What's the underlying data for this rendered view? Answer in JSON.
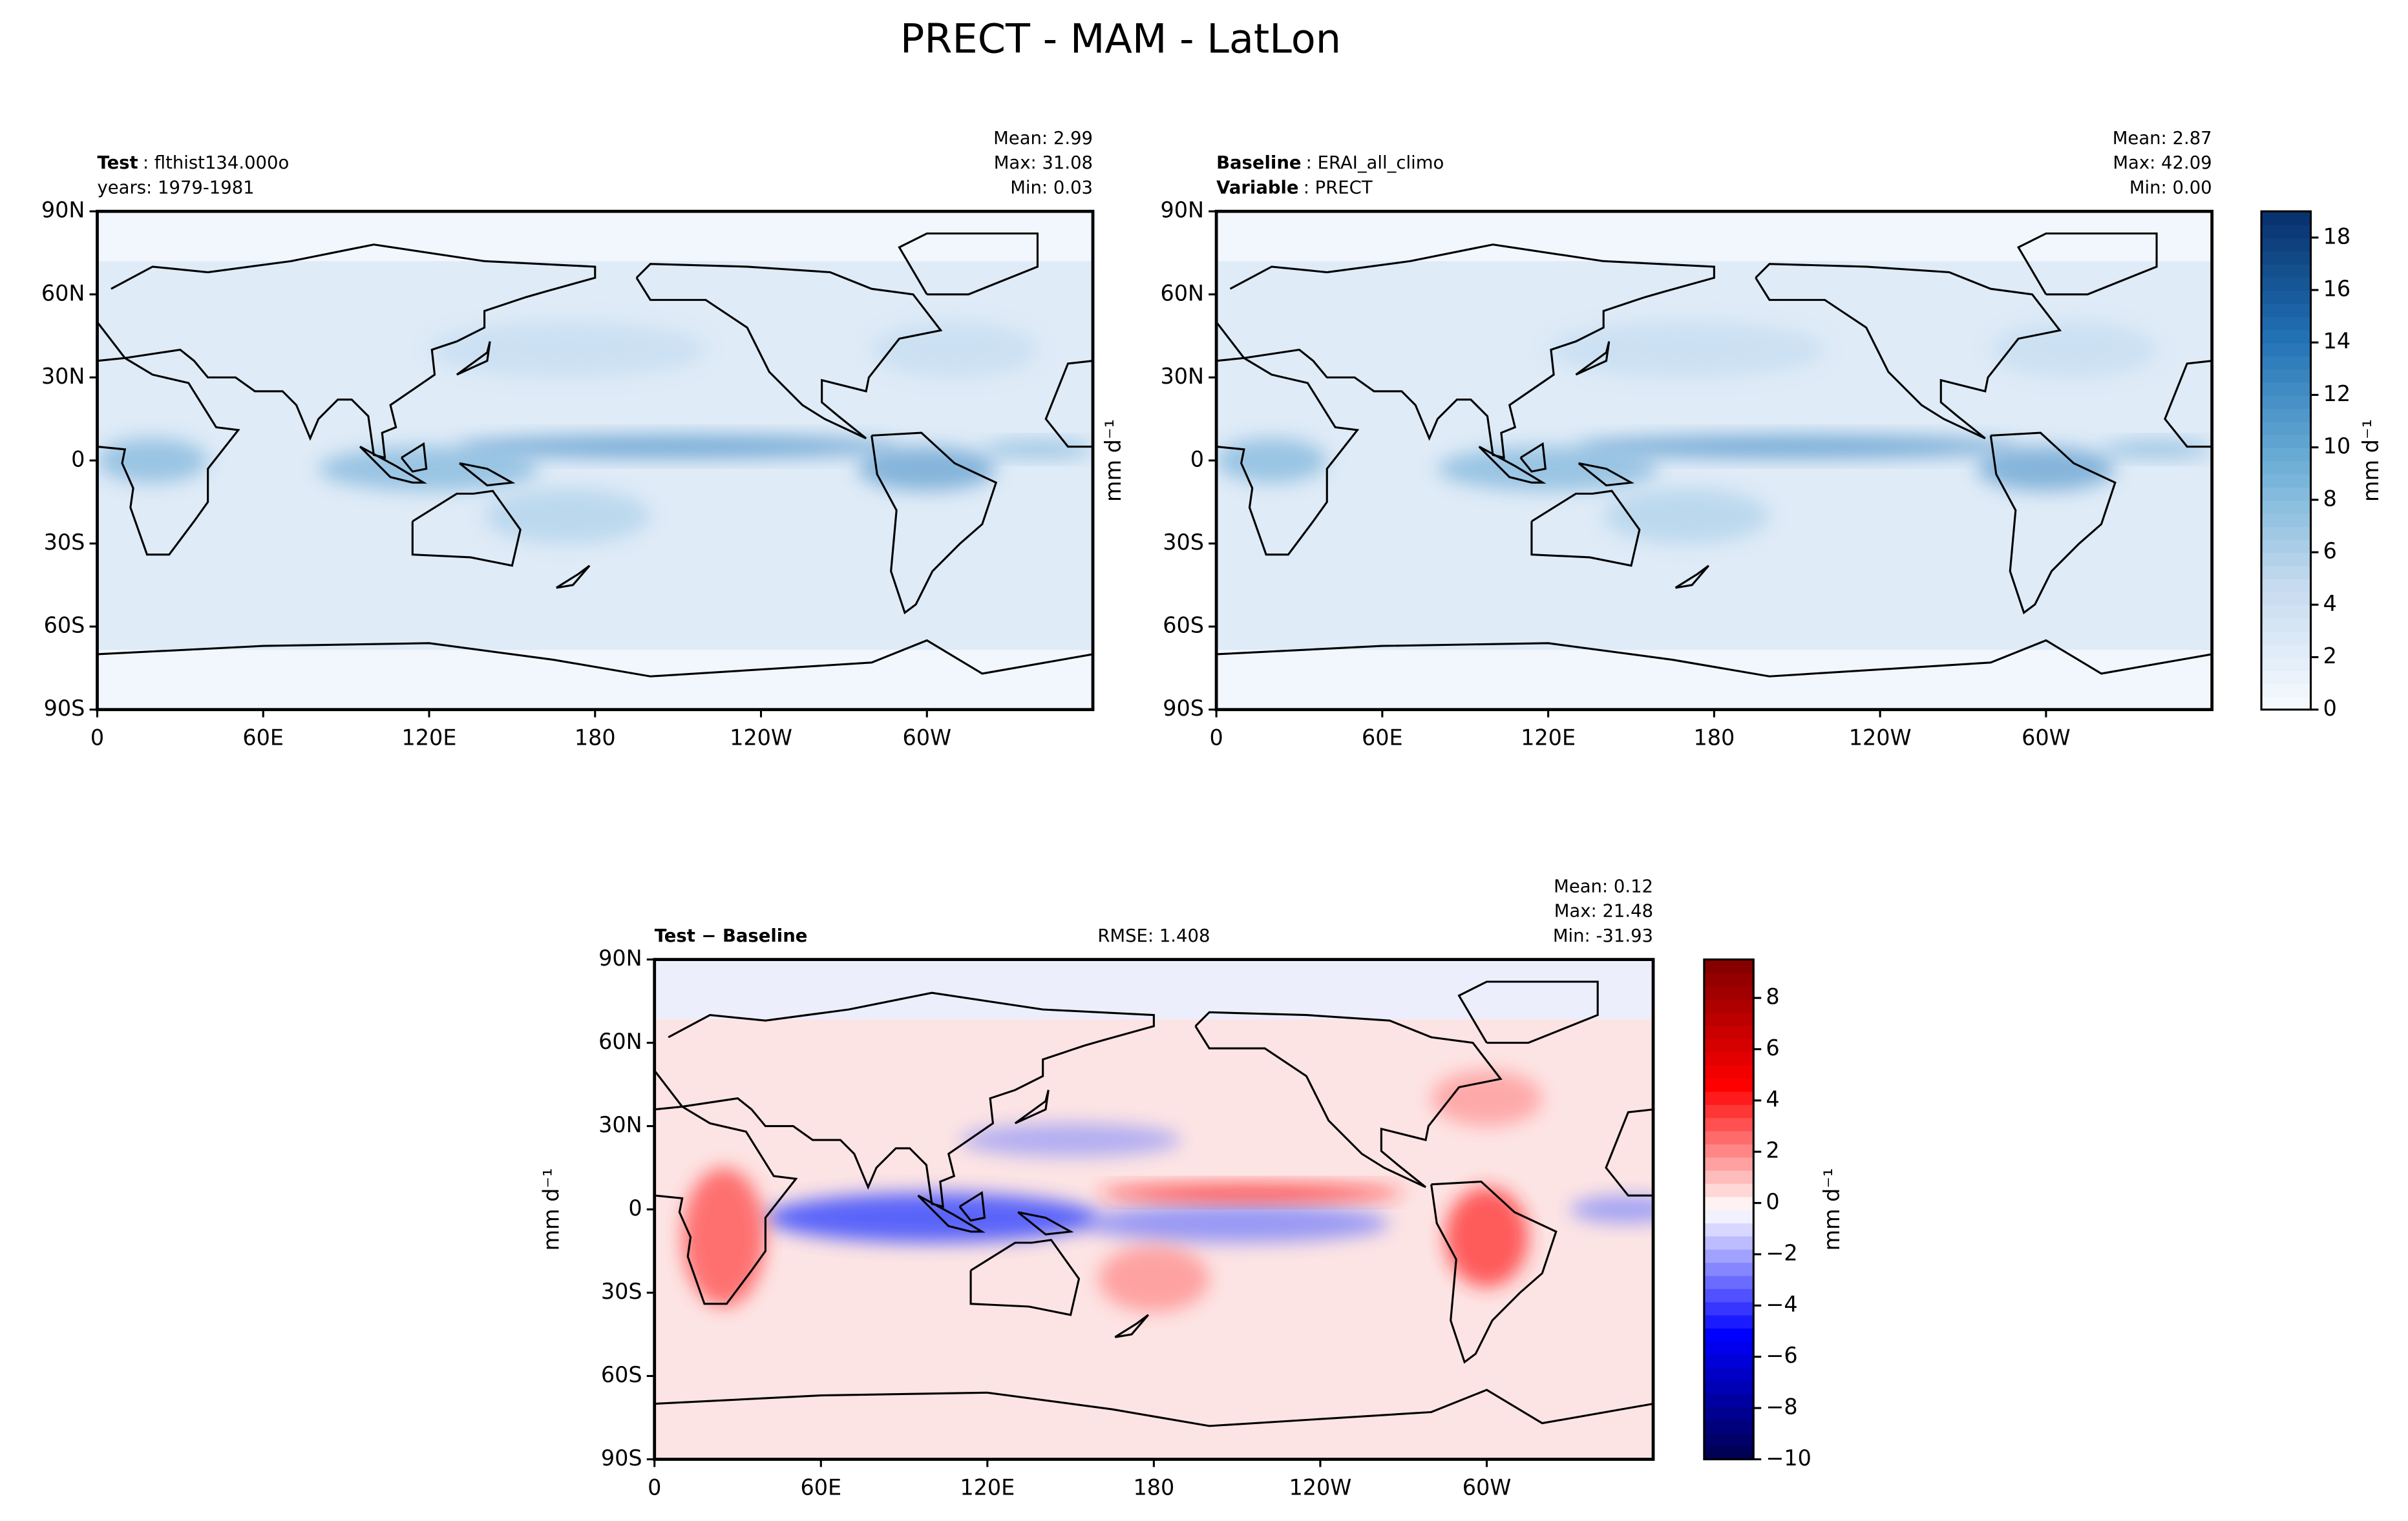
{
  "title": "PRECT - MAM - LatLon",
  "chart_data": [
    {
      "type": "map",
      "lines": [
        {
          "bold": "Test",
          "text": ": flthist134.000o"
        },
        {
          "text": "years: 1979-1981"
        }
      ],
      "stats": [
        "Mean:  2.99",
        "Max: 31.08",
        "Min:  0.03"
      ],
      "field": "full",
      "xlim": [
        0,
        360
      ],
      "ylim": [
        -90,
        90
      ],
      "xticks": [
        0,
        {
          "value": 60,
          "label": "60E"
        },
        {
          "value": 120,
          "label": "120E"
        },
        180,
        {
          "value": 240,
          "label": "120W"
        },
        {
          "value": 300,
          "label": "60W"
        }
      ],
      "yticks": [
        {
          "value": -90,
          "label": "90S"
        },
        {
          "value": -60,
          "label": "60S"
        },
        {
          "value": -30,
          "label": "30S"
        },
        0,
        {
          "value": 30,
          "label": "30N"
        },
        {
          "value": 60,
          "label": "60N"
        },
        {
          "value": 90,
          "label": "90N"
        }
      ]
    },
    {
      "type": "map",
      "lines": [
        {
          "bold": "Baseline",
          "text": ": ERAI_all_climo"
        },
        {
          "bold": "Variable",
          "text": ": PRECT"
        }
      ],
      "stats": [
        "Mean:  2.87",
        "Max: 42.09",
        "Min:  0.00"
      ],
      "ylabel": "mm d⁻¹",
      "field": "full",
      "xlim": [
        0,
        360
      ],
      "ylim": [
        -90,
        90
      ],
      "xticks": [
        0,
        {
          "value": 60,
          "label": "60E"
        },
        {
          "value": 120,
          "label": "120E"
        },
        180,
        {
          "value": 240,
          "label": "120W"
        },
        {
          "value": 300,
          "label": "60W"
        }
      ],
      "yticks": [
        {
          "value": -90,
          "label": "90S"
        },
        {
          "value": -60,
          "label": "60S"
        },
        {
          "value": -30,
          "label": "30S"
        },
        0,
        {
          "value": 30,
          "label": "30N"
        },
        {
          "value": 60,
          "label": "60N"
        },
        {
          "value": 90,
          "label": "90N"
        }
      ]
    },
    {
      "type": "map",
      "lines": [
        {
          "bold": "Test − Baseline"
        }
      ],
      "center": "RMSE: 1.408",
      "stats": [
        "Mean:  0.12",
        "Max: 21.48",
        "Min: -31.93"
      ],
      "ylabel": "mm d⁻¹",
      "field": "diff",
      "xlim": [
        0,
        360
      ],
      "ylim": [
        -90,
        90
      ],
      "xticks": [
        0,
        {
          "value": 60,
          "label": "60E"
        },
        {
          "value": 120,
          "label": "120E"
        },
        180,
        {
          "value": 240,
          "label": "120W"
        },
        {
          "value": 300,
          "label": "60W"
        }
      ],
      "yticks": [
        {
          "value": -90,
          "label": "90S"
        },
        {
          "value": -60,
          "label": "60S"
        },
        {
          "value": -30,
          "label": "30S"
        },
        0,
        {
          "value": 30,
          "label": "30N"
        },
        {
          "value": 60,
          "label": "60N"
        },
        {
          "value": 90,
          "label": "90N"
        }
      ]
    },
    {
      "type": "colorbar",
      "label": "mm d⁻¹",
      "colors": [
        "#f7fbff",
        "#c6dbef",
        "#6baed6",
        "#2171b5",
        "#08306b"
      ],
      "ylim": [
        0,
        19
      ],
      "yticks": [
        0,
        2,
        4,
        6,
        8,
        10,
        12,
        14,
        16,
        18
      ]
    },
    {
      "type": "colorbar",
      "label": "mm d⁻¹",
      "colors": [
        "#00004c",
        "#0000ff",
        "#ffffff",
        "#ff0000",
        "#800000"
      ],
      "ylim": [
        -10,
        9.5
      ],
      "yticks": [
        {
          "value": -10,
          "label": "−10"
        },
        {
          "value": -8,
          "label": "−8"
        },
        {
          "value": -6,
          "label": "−6"
        },
        {
          "value": -4,
          "label": "−4"
        },
        {
          "value": -2,
          "label": "−2"
        },
        0,
        2,
        4,
        6,
        8
      ]
    }
  ]
}
